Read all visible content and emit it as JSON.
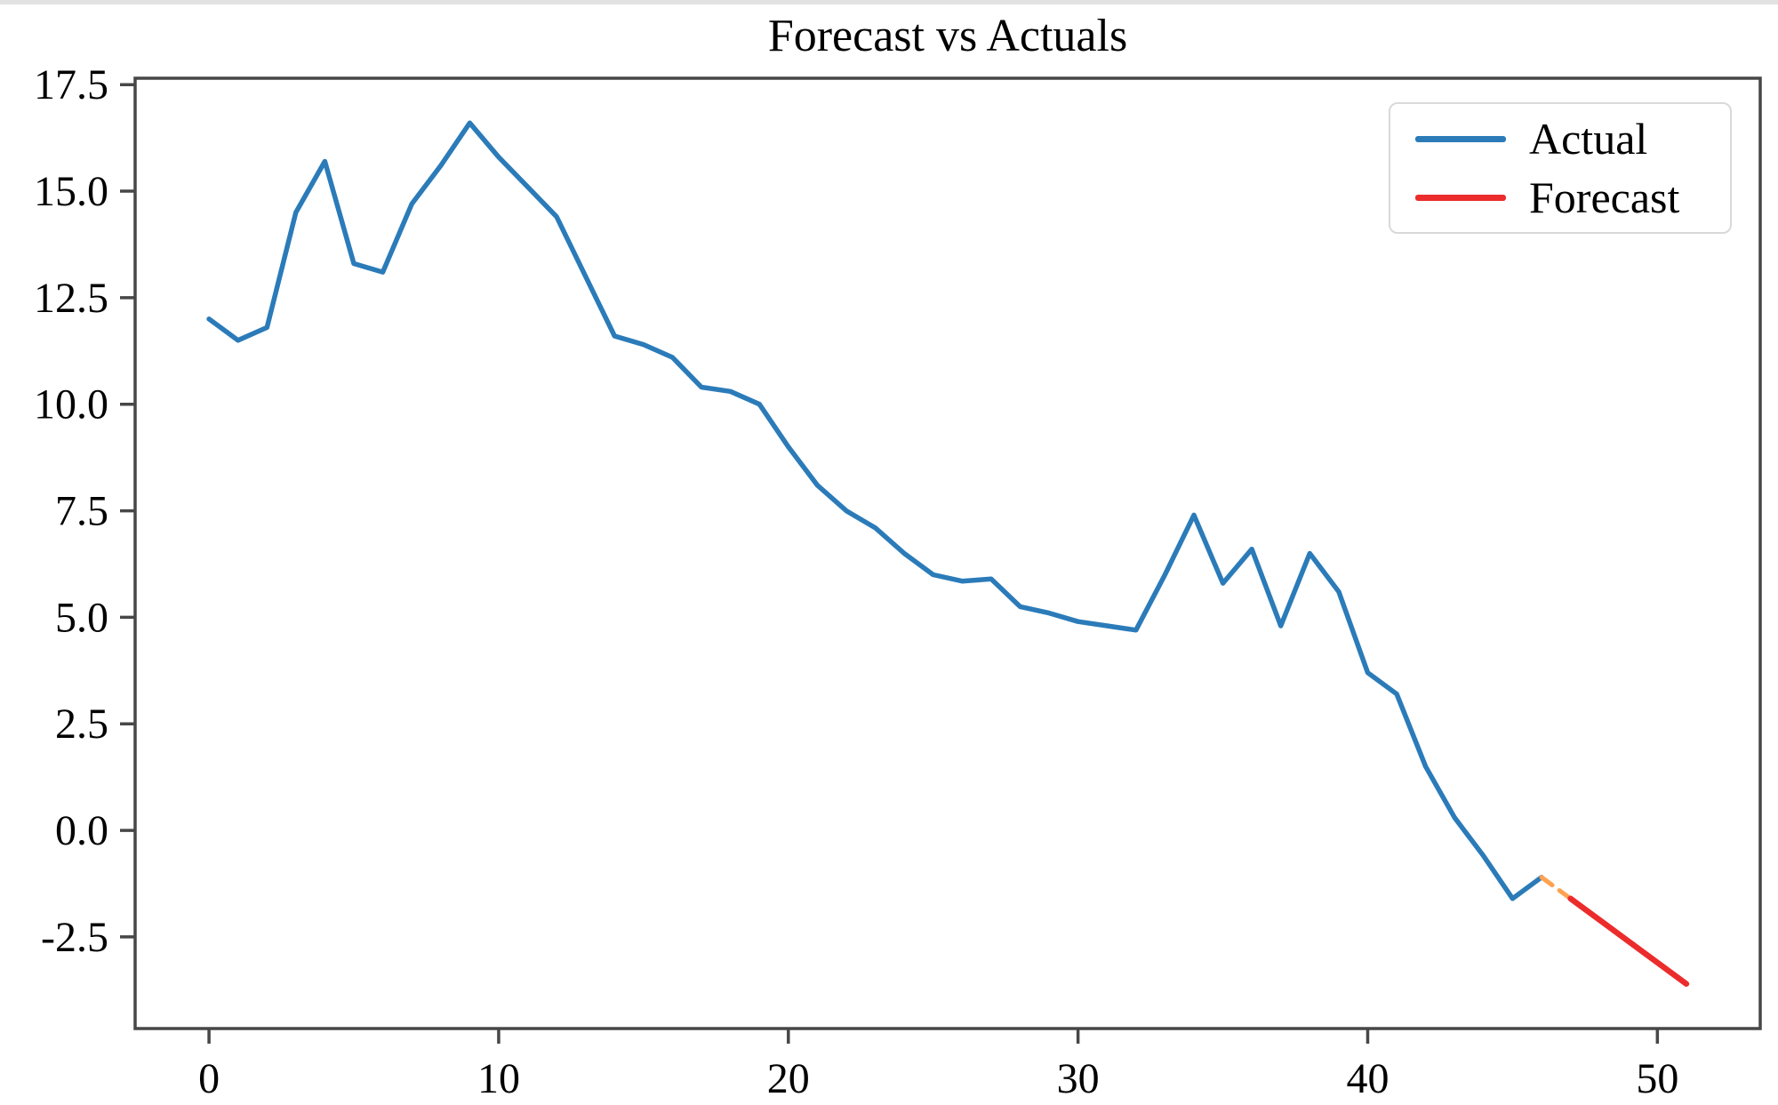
{
  "chart_data": {
    "type": "line",
    "title": "Forecast vs Actuals",
    "xlabel": "",
    "ylabel": "",
    "xlim": [
      -2.55,
      53.55
    ],
    "ylim": [
      -4.65,
      17.65
    ],
    "grid": false,
    "axis_color": "#474747",
    "text_color": "#000000",
    "x_ticks": {
      "values": [
        0,
        10,
        20,
        30,
        40,
        50
      ],
      "labels": [
        "0",
        "10",
        "20",
        "30",
        "40",
        "50"
      ]
    },
    "y_ticks": {
      "values": [
        -2.5,
        0.0,
        2.5,
        5.0,
        7.5,
        10.0,
        12.5,
        15.0,
        17.5
      ],
      "labels": [
        "-2.5",
        "0.0",
        "2.5",
        "5.0",
        "7.5",
        "10.0",
        "12.5",
        "15.0",
        "17.5"
      ]
    },
    "series": [
      {
        "name": "Actual",
        "color": "#2b7bb9",
        "width": 5.5,
        "dash": "",
        "in_legend": true,
        "x": [
          0,
          1,
          2,
          3,
          4,
          5,
          6,
          7,
          8,
          9,
          10,
          11,
          12,
          13,
          14,
          15,
          16,
          17,
          18,
          19,
          20,
          21,
          22,
          23,
          24,
          25,
          26,
          27,
          28,
          29,
          30,
          31,
          32,
          33,
          34,
          35,
          36,
          37,
          38,
          39,
          40,
          41,
          42,
          43,
          44,
          45,
          46
        ],
        "y": [
          12.0,
          11.5,
          11.8,
          14.5,
          15.7,
          13.3,
          13.1,
          14.7,
          15.6,
          16.6,
          15.8,
          15.1,
          14.4,
          13.0,
          11.6,
          11.4,
          11.1,
          10.4,
          10.3,
          10.0,
          9.0,
          8.1,
          7.5,
          7.1,
          6.5,
          6.0,
          5.85,
          5.9,
          5.25,
          5.1,
          4.9,
          4.8,
          4.7,
          6.0,
          7.4,
          5.8,
          6.6,
          4.8,
          6.5,
          5.6,
          3.7,
          3.2,
          1.5,
          0.3,
          -0.6,
          -1.6,
          -1.1
        ]
      },
      {
        "name": "connector",
        "color": "#ffa14f",
        "width": 5,
        "dash": "15 10",
        "in_legend": false,
        "x": [
          46,
          47
        ],
        "y": [
          -1.1,
          -1.6
        ]
      },
      {
        "name": "Forecast",
        "color": "#ec2c2c",
        "width": 6.5,
        "dash": "",
        "in_legend": true,
        "x": [
          47,
          48,
          49,
          50,
          51
        ],
        "y": [
          -1.6,
          -2.1,
          -2.6,
          -3.1,
          -3.6
        ]
      }
    ],
    "legend": {
      "entries": [
        "Actual",
        "Forecast"
      ],
      "position": "upper right"
    }
  }
}
